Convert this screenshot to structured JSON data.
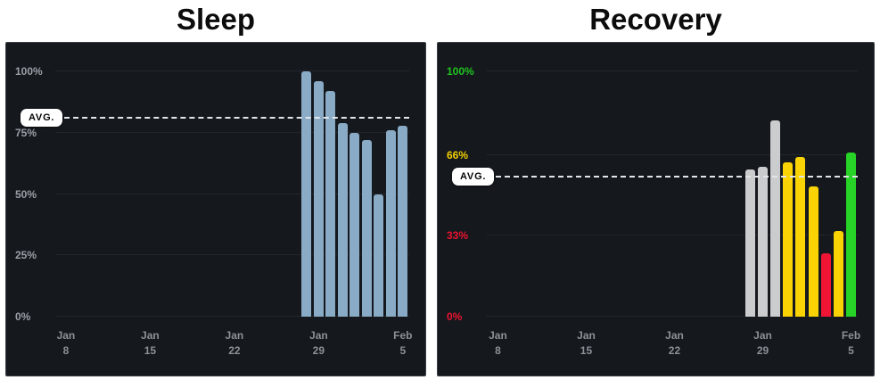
{
  "page": {
    "background": "#ffffff"
  },
  "chart_data": [
    {
      "type": "bar",
      "title": "Sleep",
      "xlabel": "",
      "ylabel": "",
      "ylim": [
        0,
        100
      ],
      "grid": "horizontal",
      "legend": "none",
      "panel_bg": "#15181d",
      "x_axis_days": {
        "min": 0,
        "max": 28
      },
      "y_ticks": [
        {
          "value": 100,
          "label": "100%",
          "color": "#9aa0a7"
        },
        {
          "value": 75,
          "label": "75%",
          "color": "#9aa0a7"
        },
        {
          "value": 50,
          "label": "50%",
          "color": "#9aa0a7"
        },
        {
          "value": 25,
          "label": "25%",
          "color": "#9aa0a7"
        },
        {
          "value": 0,
          "label": "0%",
          "color": "#9aa0a7"
        }
      ],
      "x_ticks": [
        {
          "day": 0,
          "lines": [
            "Jan",
            "8"
          ]
        },
        {
          "day": 7,
          "lines": [
            "Jan",
            "15"
          ]
        },
        {
          "day": 14,
          "lines": [
            "Jan",
            "22"
          ]
        },
        {
          "day": 21,
          "lines": [
            "Jan",
            "29"
          ]
        },
        {
          "day": 28,
          "lines": [
            "Feb",
            "5"
          ]
        }
      ],
      "avg_marker": {
        "label": "AVG.",
        "value": 81
      },
      "bars": [
        {
          "day": 20,
          "value": 100,
          "color": "#8aabc6"
        },
        {
          "day": 21,
          "value": 96,
          "color": "#8aabc6"
        },
        {
          "day": 22,
          "value": 92,
          "color": "#8aabc6"
        },
        {
          "day": 23,
          "value": 79,
          "color": "#8aabc6"
        },
        {
          "day": 24,
          "value": 75,
          "color": "#8aabc6"
        },
        {
          "day": 25,
          "value": 72,
          "color": "#8aabc6"
        },
        {
          "day": 26,
          "value": 50,
          "color": "#8aabc6"
        },
        {
          "day": 27,
          "value": 76,
          "color": "#8aabc6"
        },
        {
          "day": 28,
          "value": 78,
          "color": "#8aabc6"
        }
      ]
    },
    {
      "type": "bar",
      "title": "Recovery",
      "xlabel": "",
      "ylabel": "",
      "ylim": [
        0,
        100
      ],
      "grid": "horizontal",
      "legend": "none",
      "panel_bg": "#15181d",
      "x_axis_days": {
        "min": 0,
        "max": 28
      },
      "y_ticks": [
        {
          "value": 100,
          "label": "100%",
          "color": "#20c420"
        },
        {
          "value": 66,
          "label": "66%",
          "color": "#f2cf00"
        },
        {
          "value": 33,
          "label": "33%",
          "color": "#ed1230"
        },
        {
          "value": 0,
          "label": "0%",
          "color": "#ed1230"
        }
      ],
      "x_ticks": [
        {
          "day": 0,
          "lines": [
            "Jan",
            "8"
          ]
        },
        {
          "day": 7,
          "lines": [
            "Jan",
            "15"
          ]
        },
        {
          "day": 14,
          "lines": [
            "Jan",
            "22"
          ]
        },
        {
          "day": 21,
          "lines": [
            "Jan",
            "29"
          ]
        },
        {
          "day": 28,
          "lines": [
            "Feb",
            "5"
          ]
        }
      ],
      "avg_marker": {
        "label": "AVG.",
        "value": 57
      },
      "bars": [
        {
          "day": 20,
          "value": 60,
          "color": "#cbcccd"
        },
        {
          "day": 21,
          "value": 61,
          "color": "#cbcccd"
        },
        {
          "day": 22,
          "value": 80,
          "color": "#cbcccd"
        },
        {
          "day": 23,
          "value": 63,
          "color": "#f9d303"
        },
        {
          "day": 24,
          "value": 65,
          "color": "#f9d303"
        },
        {
          "day": 25,
          "value": 53,
          "color": "#f9d303"
        },
        {
          "day": 26,
          "value": 26,
          "color": "#f01535"
        },
        {
          "day": 27,
          "value": 35,
          "color": "#f9d303"
        },
        {
          "day": 28,
          "value": 67,
          "color": "#27d327"
        }
      ]
    }
  ]
}
